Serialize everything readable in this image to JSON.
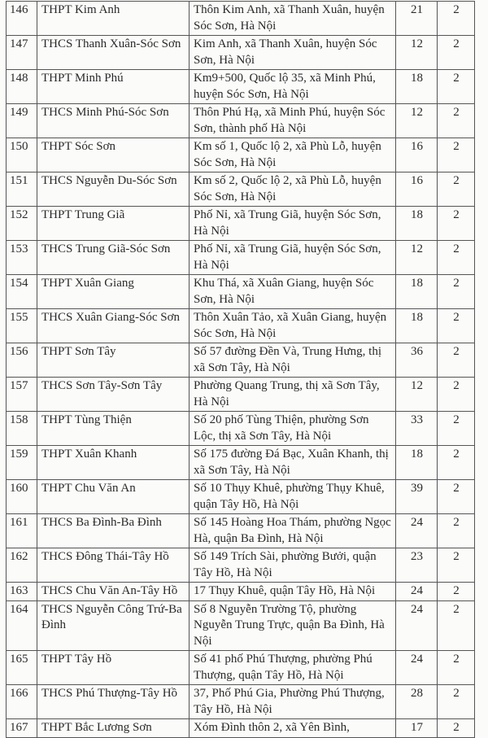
{
  "rows": [
    {
      "no": "146",
      "name": "THPT Kim Anh",
      "address": "Thôn Kim Anh, xã Thanh Xuân, huyện Sóc Sơn, Hà Nội",
      "count": "21",
      "num": "2"
    },
    {
      "no": "147",
      "name": "THCS Thanh Xuân-Sóc Sơn",
      "address": "Kim Anh, xã Thanh Xuân, huyện Sóc Sơn, Hà Nội",
      "count": "12",
      "num": "2"
    },
    {
      "no": "148",
      "name": "THPT Minh Phú",
      "address": "Km9+500, Quốc lộ 35, xã Minh Phú, huyện Sóc Sơn, Hà Nội",
      "count": "18",
      "num": "2"
    },
    {
      "no": "149",
      "name": "THCS Minh Phú-Sóc Sơn",
      "address": "Thôn Phú Hạ, xã Minh Phú, huyện Sóc Sơn, thành phố Hà Nội",
      "count": "12",
      "num": "2"
    },
    {
      "no": "150",
      "name": "THPT Sóc Sơn",
      "address": "Km số 1, Quốc lộ 2, xã Phù Lỗ, huyện Sóc Sơn, Hà Nội",
      "count": "16",
      "num": "2"
    },
    {
      "no": "151",
      "name": "THCS Nguyễn Du-Sóc Sơn",
      "address": "Km số 2, Quốc lộ 2, xã Phù Lỗ, huyện Sóc Sơn, Hà Nội",
      "count": "16",
      "num": "2"
    },
    {
      "no": "152",
      "name": "THPT Trung Giã",
      "address": "Phố Nỉ, xã Trung Giã, huyện Sóc Sơn, Hà Nội",
      "count": "18",
      "num": "2"
    },
    {
      "no": "153",
      "name": "THCS Trung Giã-Sóc Sơn",
      "address": "Phố Nỉ, xã Trung Giã, huyện Sóc Sơn, Hà Nội",
      "count": "12",
      "num": "2"
    },
    {
      "no": "154",
      "name": "THPT Xuân Giang",
      "address": "Khu Thá, xã Xuân Giang, huyện Sóc Sơn, Hà Nội",
      "count": "18",
      "num": "2"
    },
    {
      "no": "155",
      "name": "THCS Xuân Giang-Sóc Sơn",
      "address": "Thôn Xuân Tảo, xã Xuân Giang, huyện Sóc Sơn, Hà Nội",
      "count": "18",
      "num": "2"
    },
    {
      "no": "156",
      "name": "THPT Sơn Tây",
      "address": "Số 57 đường Đền Và, Trung Hưng, thị xã Sơn Tây, Hà Nội",
      "count": "36",
      "num": "2"
    },
    {
      "no": "157",
      "name": "THCS Sơn Tây-Sơn Tây",
      "address": "Phường Quang Trung, thị xã Sơn Tây, Hà Nội",
      "count": "12",
      "num": "2"
    },
    {
      "no": "158",
      "name": "THPT Tùng Thiện",
      "address": "Số 20 phố Tùng Thiện, phường Sơn Lộc, thị xã Sơn Tây, Hà Nội",
      "count": "33",
      "num": "2"
    },
    {
      "no": "159",
      "name": "THPT Xuân Khanh",
      "address": "Số 175 đường Đá Bạc, Xuân Khanh, thị xã Sơn Tây, Hà Nội",
      "count": "18",
      "num": "2"
    },
    {
      "no": "160",
      "name": "THPT Chu Văn An",
      "address": "Số 10 Thụy Khuê, phường Thụy Khuê, quận Tây Hồ, Hà Nội",
      "count": "39",
      "num": "2"
    },
    {
      "no": "161",
      "name": "THCS Ba Đình-Ba Đình",
      "address": "Số 145 Hoàng Hoa Thám, phường Ngọc Hà, quận Ba Đình, Hà Nội",
      "count": "24",
      "num": "2"
    },
    {
      "no": "162",
      "name": "THCS Đông Thái-Tây Hồ",
      "address": "Số 149 Trích Sài, phường Bưởi, quận Tây Hồ, Hà Nội",
      "count": "23",
      "num": "2"
    },
    {
      "no": "163",
      "name": "THCS Chu Văn An-Tây Hồ",
      "address": "17 Thụy Khuê, quận Tây Hồ, Hà Nội",
      "count": "24",
      "num": "2"
    },
    {
      "no": "164",
      "name": "THCS Nguyễn Công Trứ-Ba Đình",
      "address": "Số 8 Nguyễn Trường Tộ, phường Nguyễn Trung Trực, quận Ba Đình, Hà Nội",
      "count": "24",
      "num": "2"
    },
    {
      "no": "165",
      "name": "THPT Tây Hồ",
      "address": "Số 41 phố Phú Thượng, phường Phú Thượng, quận Tây Hồ, Hà Nội",
      "count": "24",
      "num": "2"
    },
    {
      "no": "166",
      "name": "THCS Phú Thượng-Tây Hồ",
      "address": "37, Phố Phú Gia, Phường Phú Thượng, Tây Hồ, Hà Nội",
      "count": "28",
      "num": "2"
    },
    {
      "no": "167",
      "name": "THPT Bắc Lương Sơn",
      "address": "Xóm Đình thôn 2, xã Yên Bình,",
      "count": "17",
      "num": "2"
    }
  ]
}
